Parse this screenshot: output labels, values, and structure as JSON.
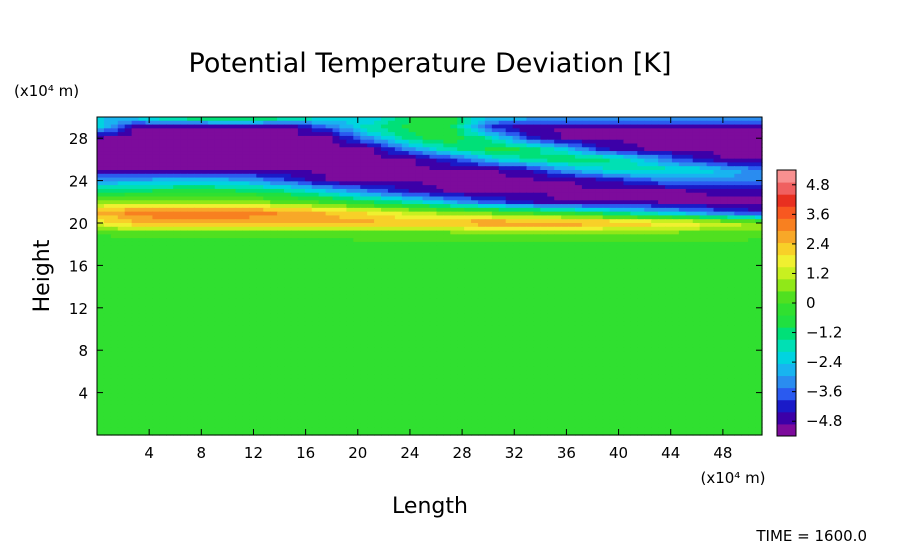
{
  "chart_data": {
    "type": "heatmap",
    "title": "Potential Temperature Deviation [K]",
    "xlabel": "Length",
    "ylabel": "Height",
    "x_unit": "(x10⁴ m)",
    "y_unit": "(x10⁴ m)",
    "xlim": [
      0,
      51
    ],
    "ylim": [
      0,
      30
    ],
    "x_ticks": [
      4,
      8,
      12,
      16,
      20,
      24,
      28,
      32,
      36,
      40,
      44,
      48
    ],
    "y_ticks": [
      4,
      8,
      12,
      16,
      20,
      24,
      28
    ],
    "colorbar": {
      "ticks": [
        4.8,
        3.6,
        2.4,
        1.2,
        0,
        -1.2,
        -2.4,
        -3.6,
        -4.8
      ],
      "range": [
        -5.4,
        5.4
      ],
      "colors": [
        "#7d0b9c",
        "#3c00a8",
        "#1a1ac8",
        "#2a5af0",
        "#2a8cf0",
        "#18b4f0",
        "#00d4e0",
        "#00e0b4",
        "#00e078",
        "#20e040",
        "#30e030",
        "#50e020",
        "#90e818",
        "#c8f020",
        "#f0f030",
        "#f8d028",
        "#f8a828",
        "#f88020",
        "#f85820",
        "#e83020",
        "#f06060",
        "#f89090"
      ]
    },
    "field": {
      "description_rows_from_top": true,
      "x": [
        0,
        3,
        6,
        9,
        12,
        15,
        18,
        21,
        24,
        27,
        30,
        33,
        36,
        39,
        42,
        45,
        48,
        51
      ],
      "y": [
        30,
        29,
        28,
        27,
        26,
        25,
        24,
        23,
        22,
        21,
        20,
        19,
        18,
        0
      ],
      "values": [
        [
          -2.5,
          -2.0,
          -0.8,
          -0.5,
          -0.5,
          -0.8,
          -2.0,
          -2.6,
          -1.0,
          -0.6,
          -2.5,
          -2.5,
          -2.5,
          -2.5,
          -2.5,
          -2.5,
          -2.5,
          -2.5
        ],
        [
          -2.2,
          -5.0,
          -5.0,
          -5.0,
          -5.0,
          -5.0,
          -3.5,
          -1.5,
          -0.8,
          -0.6,
          -4.0,
          -5.0,
          -5.0,
          -5.0,
          -5.0,
          -5.0,
          -5.0,
          -5.0
        ],
        [
          -5.0,
          -5.0,
          -5.0,
          -5.0,
          -5.0,
          -5.0,
          -5.0,
          -3.0,
          -1.2,
          -0.6,
          -1.5,
          -4.0,
          -5.0,
          -5.0,
          -5.0,
          -5.0,
          -5.0,
          -5.0
        ],
        [
          -5.0,
          -5.0,
          -5.0,
          -5.0,
          -5.0,
          -5.0,
          -5.0,
          -5.0,
          -3.0,
          -1.5,
          -0.8,
          -1.0,
          -2.5,
          -4.5,
          -5.0,
          -5.0,
          -5.0,
          -5.0
        ],
        [
          -5.0,
          -5.0,
          -5.0,
          -5.0,
          -5.0,
          -5.0,
          -5.0,
          -5.0,
          -5.0,
          -4.0,
          -2.5,
          -1.5,
          -1.0,
          -1.2,
          -2.5,
          -4.0,
          -5.0,
          -5.0
        ],
        [
          -5.0,
          -5.0,
          -5.0,
          -5.0,
          -5.0,
          -5.0,
          -5.0,
          -5.0,
          -5.0,
          -5.0,
          -5.0,
          -4.5,
          -3.0,
          -2.0,
          -1.6,
          -1.8,
          -2.5,
          -3.5
        ],
        [
          -3.0,
          -2.8,
          -2.5,
          -2.5,
          -3.0,
          -4.0,
          -5.0,
          -5.0,
          -5.0,
          -5.0,
          -5.0,
          -5.0,
          -5.0,
          -4.5,
          -3.8,
          -3.2,
          -3.0,
          -3.2
        ],
        [
          -1.2,
          -1.0,
          -0.8,
          -0.8,
          -1.0,
          -1.5,
          -2.5,
          -3.5,
          -4.5,
          -5.0,
          -5.0,
          -5.0,
          -5.0,
          -5.0,
          -5.0,
          -5.0,
          -4.8,
          -4.8
        ],
        [
          0.6,
          0.8,
          0.8,
          0.8,
          0.6,
          0.2,
          -0.3,
          -1.0,
          -1.8,
          -2.8,
          -3.8,
          -4.5,
          -5.0,
          -5.0,
          -5.0,
          -5.0,
          -5.0,
          -5.0
        ],
        [
          2.6,
          3.2,
          3.4,
          3.4,
          3.2,
          2.8,
          2.4,
          1.8,
          1.2,
          0.6,
          0.2,
          -0.3,
          -0.8,
          -1.5,
          -2.2,
          -3.0,
          -3.8,
          -4.5
        ],
        [
          1.6,
          2.4,
          2.8,
          2.8,
          2.6,
          2.6,
          2.6,
          2.6,
          2.6,
          2.8,
          3.0,
          3.0,
          3.0,
          2.8,
          2.4,
          2.0,
          1.4,
          0.8
        ],
        [
          0.0,
          0.1,
          0.1,
          0.1,
          0.1,
          0.1,
          0.1,
          0.2,
          0.2,
          0.2,
          0.3,
          0.3,
          0.3,
          0.3,
          0.3,
          0.3,
          0.3,
          0.2
        ],
        [
          -0.1,
          -0.1,
          -0.1,
          -0.1,
          -0.1,
          -0.1,
          -0.1,
          -0.1,
          -0.1,
          -0.1,
          -0.1,
          -0.1,
          -0.1,
          -0.1,
          -0.1,
          -0.1,
          -0.1,
          -0.2
        ],
        [
          -0.2,
          -0.2,
          -0.2,
          -0.2,
          -0.2,
          -0.2,
          -0.2,
          -0.2,
          -0.2,
          -0.2,
          -0.2,
          -0.2,
          -0.2,
          -0.2,
          -0.2,
          -0.2,
          -0.2,
          -0.3
        ]
      ]
    }
  },
  "footer": {
    "time_label": "TIME = 1600.0"
  }
}
